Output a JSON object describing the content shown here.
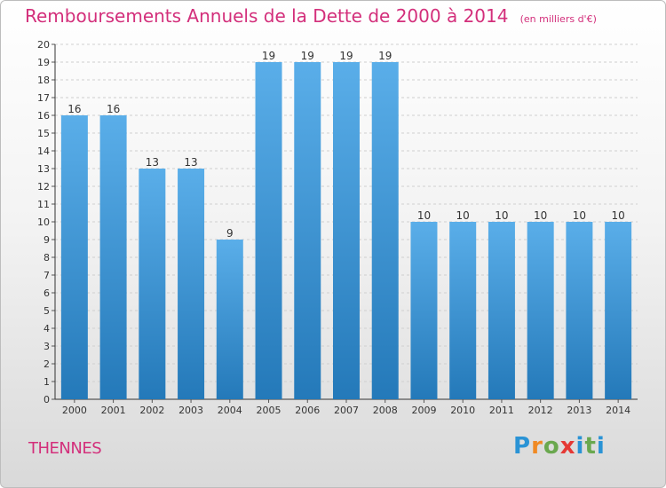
{
  "title": "Remboursements Annuels de la Dette de 2000 à 2014",
  "unit": "(en milliers d'€)",
  "commune": "THENNES",
  "brand": "Proxiti",
  "colors": {
    "title": "#d32f7b",
    "bar_top": "#5aaee9",
    "bar_bottom": "#2479b9",
    "brand_letters": [
      "#2a93d5",
      "#f08a24",
      "#6aa84f",
      "#e53935",
      "#2a93d5",
      "#6aa84f",
      "#2a93d5"
    ]
  },
  "chart_data": {
    "type": "bar",
    "categories": [
      "2000",
      "2001",
      "2002",
      "2003",
      "2004",
      "2005",
      "2006",
      "2007",
      "2008",
      "2009",
      "2010",
      "2011",
      "2012",
      "2013",
      "2014"
    ],
    "values": [
      16,
      16,
      13,
      13,
      9,
      19,
      19,
      19,
      19,
      10,
      10,
      10,
      10,
      10,
      10
    ],
    "ylim": [
      0,
      20
    ],
    "yticks": [
      0,
      1,
      2,
      3,
      4,
      5,
      6,
      7,
      8,
      9,
      10,
      11,
      12,
      13,
      14,
      15,
      16,
      17,
      18,
      19,
      20
    ],
    "grid": true,
    "data_labels": true,
    "title": "Remboursements Annuels de la Dette de 2000 à 2014",
    "xlabel": "",
    "ylabel": ""
  }
}
